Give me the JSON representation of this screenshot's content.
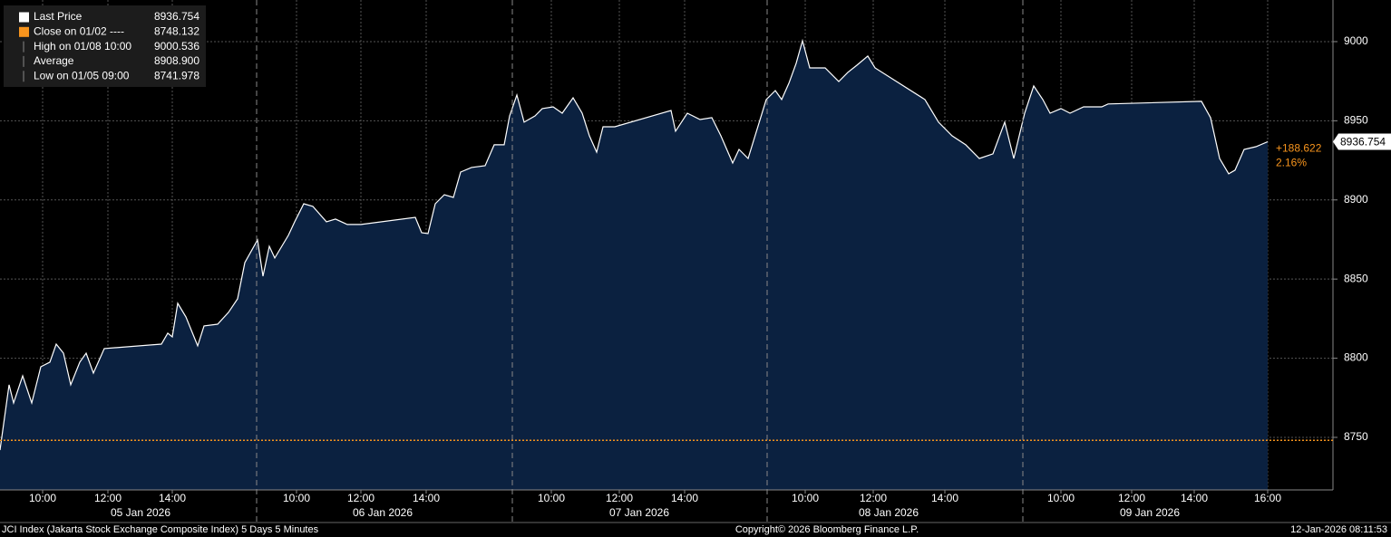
{
  "chart_data": {
    "type": "area",
    "series": [
      {
        "name": "Last Price",
        "color": "#ffffff",
        "fill": "#0b2140",
        "values": [
          8741.978,
          8783.2,
          8771.7,
          8788.9,
          8771.7,
          8794.6,
          8797.5,
          8808.9,
          8803.2,
          8783.2,
          8797.5,
          8803.2,
          8790.6,
          8806.1,
          8808.9,
          8815.8,
          8813.5,
          8834.7,
          8826.1,
          8807.8,
          8820.4,
          8821.5,
          8829.0,
          8837.5,
          8860.4,
          8874.7,
          8851.8,
          8870.7,
          8863.3,
          8877.6,
          8886.2,
          8897.6,
          8895.9,
          8886.2,
          8887.9,
          8884.5,
          8884.5,
          8889.0,
          8879.3,
          8878.7,
          8897.6,
          8903.3,
          8901.6,
          8917.6,
          8920.5,
          8921.6,
          8934.8,
          8934.8,
          8953.1,
          8966.3,
          8949.1,
          8953.1,
          8957.7,
          8958.8,
          8954.8,
          8964.5,
          8954.8,
          8940.5,
          8930.2,
          8946.2,
          8946.2,
          8956.5,
          8943.4,
          8954.8,
          8950.8,
          8952.0,
          8940.5,
          8923.3,
          8931.9,
          8926.2,
          8963.4,
          8969.1,
          8963.4,
          8973.7,
          8986.3,
          9000.536,
          8983.4,
          8983.4,
          8974.8,
          8980.6,
          8985.1,
          8990.9,
          8983.4,
          8963.4,
          8949.1,
          8940.5,
          8934.8,
          8926.2,
          8929.1,
          8949.1,
          8926.2,
          8954.8,
          8972.0,
          8963.4,
          8954.8,
          8957.7,
          8954.8,
          8958.8,
          8958.8,
          8960.6,
          8962.3,
          8952.0,
          8926.2,
          8916.5,
          8918.8,
          8931.9,
          8933.6,
          8936.754
        ]
      }
    ],
    "x": [
      0,
      1.0,
      1.5,
      2.5,
      3.5,
      4.5,
      5.5,
      6.2,
      7.0,
      7.8,
      8.8,
      9.5,
      10.3,
      11.5,
      17.8,
      18.5,
      19.0,
      19.6,
      20.5,
      21.8,
      22.5,
      24.0,
      25.2,
      26.2,
      27.0,
      28.4,
      29.0,
      29.7,
      30.3,
      31.8,
      32.5,
      33.5,
      34.5,
      36.0,
      37.0,
      38.3,
      39.8,
      45.8,
      46.5,
      47.2,
      48.0,
      49.0,
      50.0,
      50.8,
      52.0,
      53.5,
      54.5,
      55.6,
      56.2,
      57.0,
      57.8,
      59.0,
      59.8,
      61.0,
      62.0,
      63.2,
      64.2,
      65.0,
      65.8,
      66.5,
      67.8,
      74.0,
      74.5,
      75.8,
      77.2,
      78.5,
      79.5,
      80.8,
      81.5,
      82.5,
      84.5,
      85.5,
      86.2,
      87.0,
      87.8,
      88.5,
      89.3,
      91.0,
      92.5,
      93.5,
      94.5,
      95.7,
      96.5,
      102.0,
      103.5,
      105.0,
      106.5,
      108.0,
      109.5,
      110.8,
      111.8,
      113.0,
      114.0,
      115.0,
      115.8,
      117.0,
      118.0,
      119.5,
      121.5,
      122.2,
      132.5,
      133.5,
      134.5,
      135.5,
      136.2,
      137.2,
      138.5,
      139.8
    ],
    "xlim": [
      0,
      147
    ],
    "xticks": [
      {
        "value": 4.7,
        "label": "10:00"
      },
      {
        "value": 11.9,
        "label": "12:00"
      },
      {
        "value": 19.0,
        "label": "14:00"
      },
      {
        "value": 32.7,
        "label": "10:00"
      },
      {
        "value": 39.8,
        "label": "12:00"
      },
      {
        "value": 47.0,
        "label": "14:00"
      },
      {
        "value": 60.8,
        "label": "10:00"
      },
      {
        "value": 68.3,
        "label": "12:00"
      },
      {
        "value": 75.5,
        "label": "14:00"
      },
      {
        "value": 88.8,
        "label": "10:00"
      },
      {
        "value": 96.3,
        "label": "12:00"
      },
      {
        "value": 104.2,
        "label": "14:00"
      },
      {
        "value": 117.0,
        "label": "10:00"
      },
      {
        "value": 124.8,
        "label": "12:00"
      },
      {
        "value": 131.7,
        "label": "14:00"
      },
      {
        "value": 139.8,
        "label": "16:00"
      }
    ],
    "xdates": [
      {
        "value": 15.5,
        "label": "05 Jan 2026"
      },
      {
        "value": 42.2,
        "label": "06 Jan 2026"
      },
      {
        "value": 70.5,
        "label": "07 Jan 2026"
      },
      {
        "value": 98.0,
        "label": "08 Jan 2026"
      },
      {
        "value": 126.8,
        "label": "09 Jan 2026"
      }
    ],
    "xbreaks": [
      28.3,
      56.5,
      84.6,
      112.8
    ],
    "ylim": [
      8716.8,
      9026.3
    ],
    "yticks": [
      8750,
      8800,
      8850,
      8900,
      8950,
      9000
    ],
    "grid": true,
    "reference_line": {
      "value": 8748.132,
      "color": "#f7941d"
    },
    "last_price": 8936.754,
    "change": {
      "value": 188.622,
      "label": "+188.622"
    },
    "change_pct": {
      "value": 2.16,
      "label": "2.16%"
    },
    "legend": [
      {
        "label": "Last Price",
        "value": 8936.754
      },
      {
        "label": "Close on 01/02 ----",
        "value": 8748.132
      },
      {
        "label": "High on 01/08 10:00",
        "value": 9000.536
      },
      {
        "label": "Average",
        "value": 8908.9,
        "value_label": "8908.900"
      },
      {
        "label": "Low on 01/05 09:00",
        "value": 8741.978
      }
    ],
    "footer_left": "JCI Index (Jakarta Stock Exchange Composite Index) 5 Days 5 Minutes",
    "footer_center": "Copyright© 2026 Bloomberg Finance L.P.",
    "footer_right": "12-Jan-2026 08:11:53"
  }
}
